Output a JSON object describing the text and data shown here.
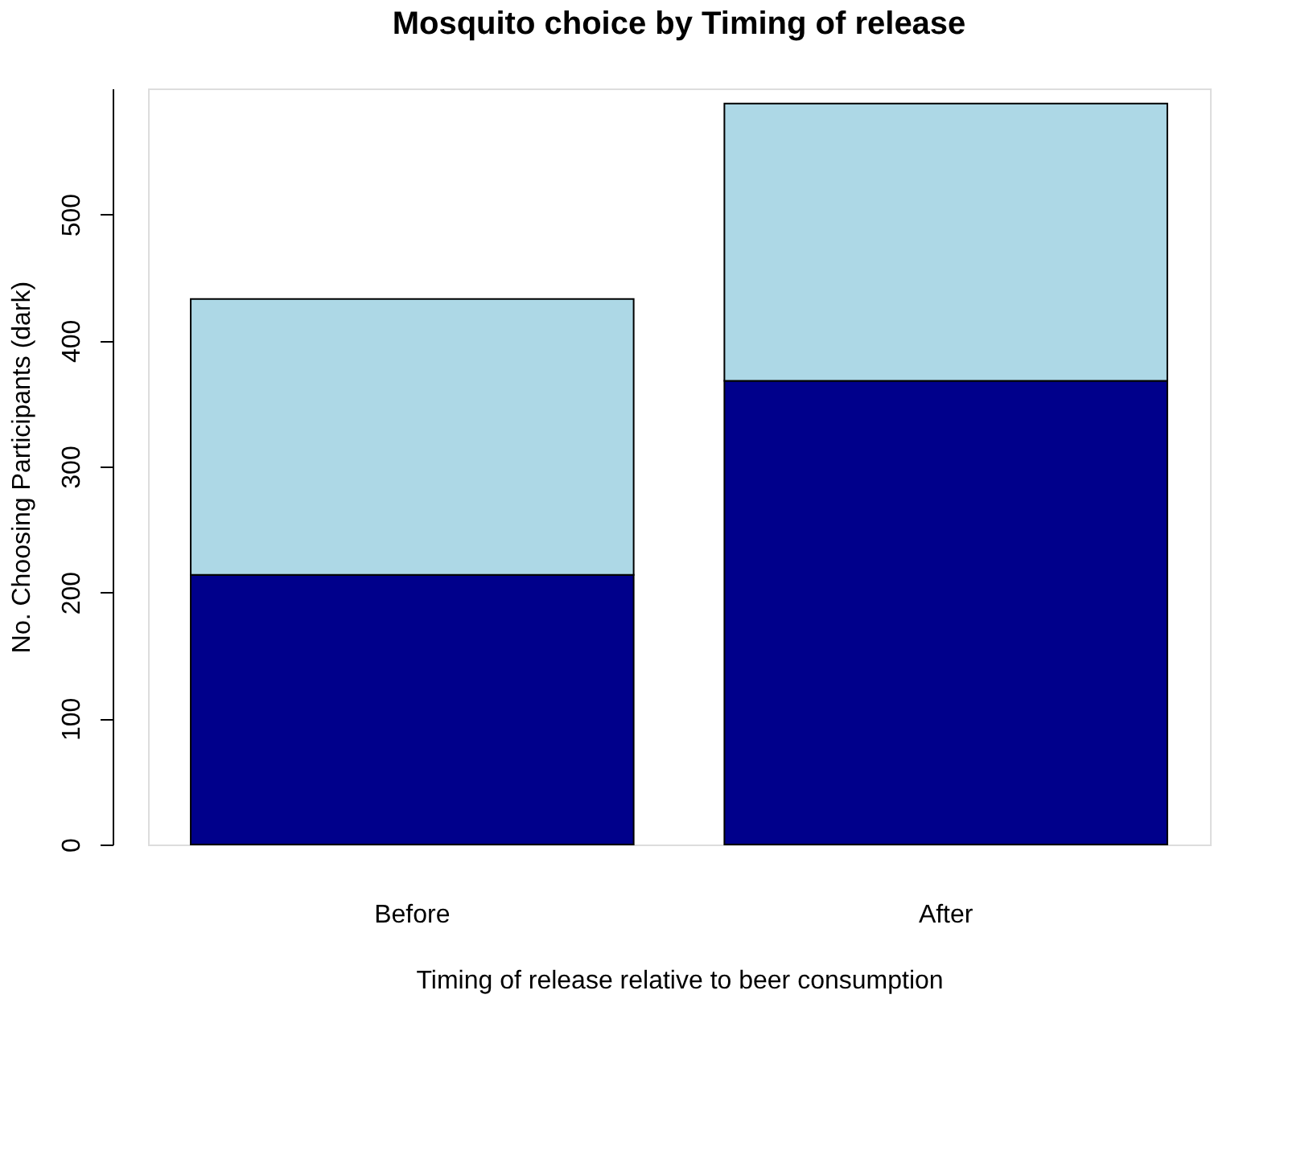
{
  "chart_data": {
    "type": "bar",
    "title": "Mosquito choice by Timing of release",
    "xlabel": "Timing of release relative to beer consumption",
    "ylabel": "No. Choosing Participants (dark)",
    "categories": [
      "Before",
      "After"
    ],
    "stacked": true,
    "series": [
      {
        "color": "#00008b",
        "values": [
          214,
          368
        ]
      },
      {
        "color": "#add8e6",
        "values": [
          219,
          220
        ]
      }
    ],
    "ylim": [
      0,
      600
    ],
    "yticks": [
      0,
      100,
      200,
      300,
      400,
      500
    ],
    "grid": false,
    "legend": false
  }
}
